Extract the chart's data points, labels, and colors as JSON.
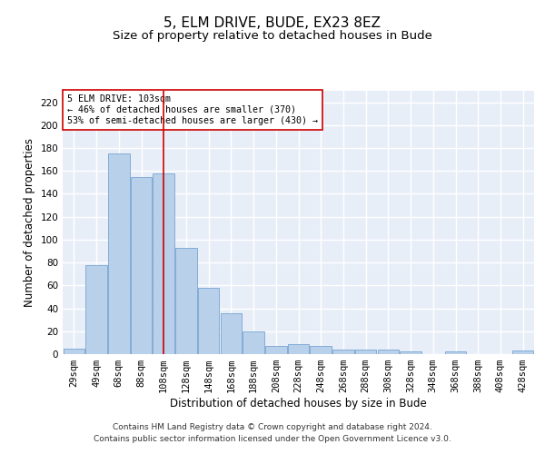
{
  "title": "5, ELM DRIVE, BUDE, EX23 8EZ",
  "subtitle": "Size of property relative to detached houses in Bude",
  "xlabel": "Distribution of detached houses by size in Bude",
  "ylabel": "Number of detached properties",
  "categories": [
    "29sqm",
    "49sqm",
    "68sqm",
    "88sqm",
    "108sqm",
    "128sqm",
    "148sqm",
    "168sqm",
    "188sqm",
    "208sqm",
    "228sqm",
    "248sqm",
    "268sqm",
    "288sqm",
    "308sqm",
    "328sqm",
    "348sqm",
    "368sqm",
    "388sqm",
    "408sqm",
    "428sqm"
  ],
  "values": [
    5,
    78,
    175,
    155,
    158,
    93,
    58,
    36,
    20,
    7,
    9,
    7,
    4,
    4,
    4,
    2,
    0,
    2,
    0,
    0,
    3
  ],
  "bar_color": "#b8d0ea",
  "bar_edgecolor": "#6699cc",
  "vline_x_index": 4,
  "vline_color": "#cc0000",
  "annotation_text": "5 ELM DRIVE: 103sqm\n← 46% of detached houses are smaller (370)\n53% of semi-detached houses are larger (430) →",
  "annotation_box_edgecolor": "#cc0000",
  "annotation_box_facecolor": "#ffffff",
  "ylim": [
    0,
    230
  ],
  "yticks": [
    0,
    20,
    40,
    60,
    80,
    100,
    120,
    140,
    160,
    180,
    200,
    220
  ],
  "footer_text": "Contains HM Land Registry data © Crown copyright and database right 2024.\nContains public sector information licensed under the Open Government Licence v3.0.",
  "background_color": "#e8eef8",
  "grid_color": "#ffffff",
  "title_fontsize": 11,
  "subtitle_fontsize": 9.5,
  "axis_label_fontsize": 8.5,
  "tick_fontsize": 7.5,
  "footer_fontsize": 6.5
}
